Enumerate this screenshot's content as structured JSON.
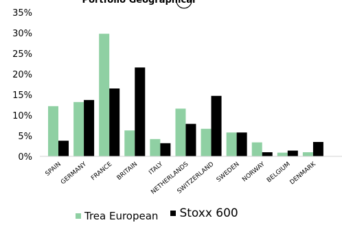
{
  "chart_data": {
    "type": "bar",
    "title": "Portfolio Geographical",
    "categories": [
      "SPAIN",
      "GERMANY",
      "FRANCE",
      "BRITAIN",
      "ITALY",
      "NETHERLANDS",
      "SWITZERLAND",
      "SWEDEN",
      "NORWAY",
      "BELGIUM",
      "DENMARK"
    ],
    "series": [
      {
        "name": "Trea European",
        "color": "#8fd0a3",
        "values": [
          12.2,
          13.2,
          29.8,
          6.3,
          4.2,
          11.6,
          6.7,
          5.8,
          3.4,
          0.9,
          1.0
        ]
      },
      {
        "name": "Stoxx 600",
        "color": "#000000",
        "values": [
          3.8,
          13.7,
          16.5,
          21.6,
          3.2,
          7.9,
          14.7,
          5.8,
          1.0,
          1.4,
          3.5
        ]
      }
    ],
    "ylim": [
      0,
      35
    ],
    "yticks": [
      "0%",
      "5%",
      "10%",
      "15%",
      "20%",
      "25%",
      "30%",
      "35%"
    ],
    "grid": false,
    "legend_position": "bottom"
  }
}
